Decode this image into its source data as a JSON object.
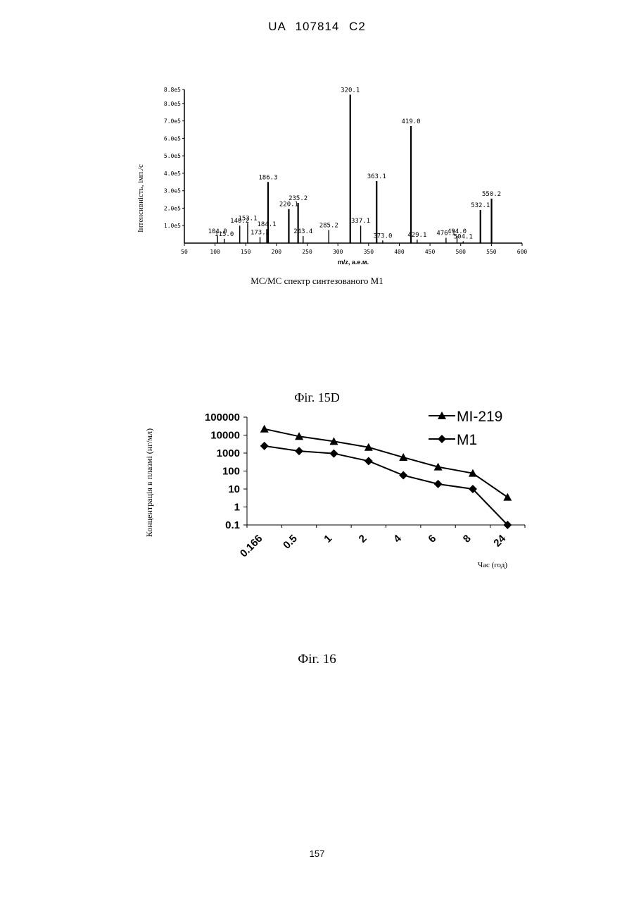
{
  "header": {
    "text": "UA   107814   C2"
  },
  "page_number": "157",
  "captions": {
    "fig15d": "Фіг. 15D",
    "fig16": "Фіг. 16"
  },
  "chart_data": [
    {
      "type": "bar",
      "subtype": "mass-spectrum",
      "caption": "МС/МС спектр синтезованого М1",
      "xlabel": "m/z, а.е.м.",
      "ylabel": "Інтенсивність, імп./с",
      "xlim": [
        50,
        600
      ],
      "ylim": [
        0,
        880000
      ],
      "xticks": [
        50,
        100,
        150,
        200,
        250,
        300,
        350,
        400,
        450,
        500,
        550,
        600
      ],
      "yticks": [
        {
          "value": 100000,
          "label": "1.0e5"
        },
        {
          "value": 200000,
          "label": "2.0e5"
        },
        {
          "value": 300000,
          "label": "3.0e5"
        },
        {
          "value": 400000,
          "label": "4.0e5"
        },
        {
          "value": 500000,
          "label": "5.0e5"
        },
        {
          "value": 600000,
          "label": "6.0e5"
        },
        {
          "value": 700000,
          "label": "7.0e5"
        },
        {
          "value": 800000,
          "label": "8.0e5"
        },
        {
          "value": 880000,
          "label": "8.8e5"
        }
      ],
      "peaks": [
        {
          "mz": 104.0,
          "intensity": 40000,
          "label": "104.0"
        },
        {
          "mz": 115.0,
          "intensity": 25000,
          "label": "115.0"
        },
        {
          "mz": 140.2,
          "intensity": 100000,
          "label": "140.2"
        },
        {
          "mz": 153.1,
          "intensity": 115000,
          "label": "153.1"
        },
        {
          "mz": 173.2,
          "intensity": 35000,
          "label": "173.2"
        },
        {
          "mz": 184.1,
          "intensity": 80000,
          "label": "184.1"
        },
        {
          "mz": 186.3,
          "intensity": 350000,
          "label": "186.3"
        },
        {
          "mz": 220.1,
          "intensity": 195000,
          "label": "220.1"
        },
        {
          "mz": 235.2,
          "intensity": 230000,
          "label": "235.2"
        },
        {
          "mz": 243.4,
          "intensity": 40000,
          "label": "243.4"
        },
        {
          "mz": 285.2,
          "intensity": 75000,
          "label": "285.2"
        },
        {
          "mz": 320.1,
          "intensity": 850000,
          "label": "320.1"
        },
        {
          "mz": 337.1,
          "intensity": 100000,
          "label": "337.1"
        },
        {
          "mz": 363.1,
          "intensity": 355000,
          "label": "363.1"
        },
        {
          "mz": 373.0,
          "intensity": 15000,
          "label": "373.0"
        },
        {
          "mz": 429.1,
          "intensity": 20000,
          "label": "429.1"
        },
        {
          "mz": 419.0,
          "intensity": 670000,
          "label": "419.0"
        },
        {
          "mz": 476.1,
          "intensity": 30000,
          "label": "476.1"
        },
        {
          "mz": 494.0,
          "intensity": 40000,
          "label": "494.0"
        },
        {
          "mz": 504.1,
          "intensity": 10000,
          "label": "504.1"
        },
        {
          "mz": 532.1,
          "intensity": 190000,
          "label": "532.1"
        },
        {
          "mz": 550.2,
          "intensity": 255000,
          "label": "550.2"
        }
      ]
    },
    {
      "type": "line",
      "scale": "log",
      "ylabel": "Концентрація в плазмі (нг/мл)",
      "xlabel": "Час (год)",
      "categories": [
        "0.166",
        "0.5",
        "1",
        "2",
        "4",
        "6",
        "8",
        "24"
      ],
      "yticks": [
        "0.1",
        "1",
        "10",
        "100",
        "1000",
        "10000",
        "100000"
      ],
      "ylim": [
        0.1,
        100000
      ],
      "legend_position": "top-right",
      "series": [
        {
          "name": "MI-219",
          "marker": "triangle",
          "values": [
            22000,
            8500,
            4500,
            2100,
            580,
            170,
            75,
            3.5
          ]
        },
        {
          "name": "M1",
          "marker": "diamond",
          "values": [
            2500,
            1300,
            950,
            360,
            58,
            19,
            10,
            0.1
          ]
        }
      ]
    }
  ]
}
